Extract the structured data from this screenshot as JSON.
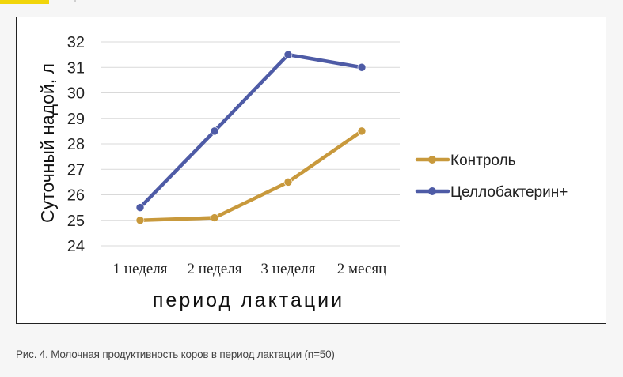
{
  "chart_data": {
    "type": "line",
    "ylabel": "Суточный надой, л",
    "xlabel": "период лактации",
    "ylim": [
      24,
      32
    ],
    "yticks": [
      "24",
      "25",
      "26",
      "27",
      "28",
      "29",
      "30",
      "31",
      "32"
    ],
    "categories": [
      "1 неделя",
      "2 неделя",
      "3 неделя",
      "2 месяц"
    ],
    "grid": true,
    "legend_position": "right",
    "series": [
      {
        "name": "Контроль",
        "color": "#c8993c",
        "values": [
          25.0,
          25.1,
          26.5,
          28.5
        ]
      },
      {
        "name": "Целлобактерин+",
        "color": "#4e5ba6",
        "values": [
          25.5,
          28.5,
          31.5,
          31.0
        ]
      }
    ]
  },
  "caption": "Рис. 4. Молочная продуктивность коров в период лактации (n=50)"
}
